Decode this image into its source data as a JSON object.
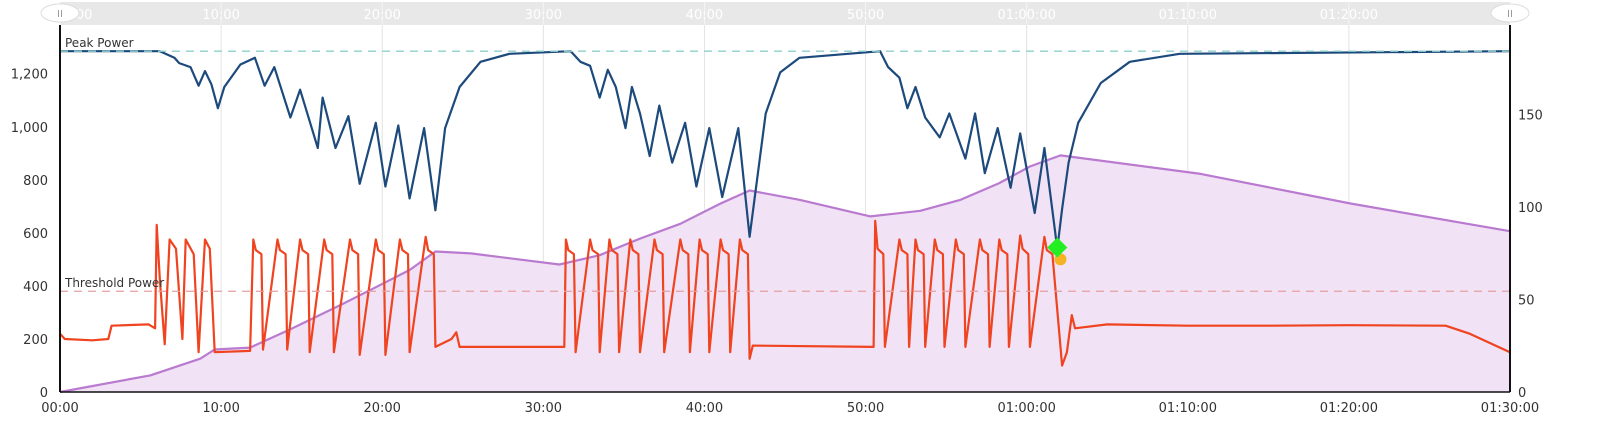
{
  "chart_data": {
    "type": "line",
    "x_unit": "minutes",
    "xlim": [
      0,
      90
    ],
    "ylim_left": [
      0,
      1380
    ],
    "ylim_right": [
      0,
      198
    ],
    "grid": "vertical",
    "x_ticks": [
      {
        "v": 0,
        "label": "00:00"
      },
      {
        "v": 10,
        "label": "10:00"
      },
      {
        "v": 20,
        "label": "20:00"
      },
      {
        "v": 30,
        "label": "30:00"
      },
      {
        "v": 40,
        "label": "40:00"
      },
      {
        "v": 50,
        "label": "50:00"
      },
      {
        "v": 60,
        "label": "01:00:00"
      },
      {
        "v": 70,
        "label": "01:10:00"
      },
      {
        "v": 80,
        "label": "01:20:00"
      },
      {
        "v": 90,
        "label": "01:30:00"
      }
    ],
    "navigator_ticks": [
      {
        "v": 0,
        "label": ":00"
      },
      {
        "v": 10,
        "label": "10:00"
      },
      {
        "v": 20,
        "label": "20:00"
      },
      {
        "v": 30,
        "label": "30:00"
      },
      {
        "v": 40,
        "label": "40:00"
      },
      {
        "v": 50,
        "label": "50:00"
      },
      {
        "v": 60,
        "label": "01:00:00"
      },
      {
        "v": 70,
        "label": "01:10:00"
      },
      {
        "v": 80,
        "label": "01:20:00"
      }
    ],
    "y_left_ticks": [
      {
        "v": 0,
        "label": "0"
      },
      {
        "v": 200,
        "label": "200"
      },
      {
        "v": 400,
        "label": "400"
      },
      {
        "v": 600,
        "label": "600"
      },
      {
        "v": 800,
        "label": "800"
      },
      {
        "v": 1000,
        "label": "1,000"
      },
      {
        "v": 1200,
        "label": "1,200"
      }
    ],
    "y_right_ticks": [
      {
        "v": 0,
        "label": "0"
      },
      {
        "v": 50,
        "label": "50"
      },
      {
        "v": 100,
        "label": "100"
      },
      {
        "v": 150,
        "label": "150"
      }
    ],
    "reference_lines": [
      {
        "label": "Peak Power",
        "value": 1285,
        "color": "#8ecfcb"
      },
      {
        "label": "Threshold Power",
        "value": 380,
        "color": "#e5a0a0"
      }
    ],
    "series": [
      {
        "axis": "right",
        "style": "area",
        "color": "#b97ad0",
        "fill": "#f1e3f5",
        "points": [
          [
            0,
            0
          ],
          [
            5.6,
            9
          ],
          [
            8.7,
            18
          ],
          [
            9.6,
            23
          ],
          [
            11.8,
            24
          ],
          [
            14.3,
            34
          ],
          [
            17.4,
            47
          ],
          [
            19.9,
            58
          ],
          [
            21.7,
            66
          ],
          [
            23.3,
            76
          ],
          [
            25.5,
            75
          ],
          [
            31.0,
            69
          ],
          [
            33.5,
            74
          ],
          [
            36.0,
            83
          ],
          [
            38.5,
            91
          ],
          [
            41.0,
            102
          ],
          [
            42.8,
            109
          ],
          [
            45.9,
            104
          ],
          [
            50.3,
            95
          ],
          [
            53.4,
            98
          ],
          [
            55.9,
            104
          ],
          [
            58.3,
            113
          ],
          [
            60.2,
            122
          ],
          [
            62.1,
            128
          ],
          [
            70.8,
            118
          ],
          [
            80.1,
            102
          ],
          [
            90,
            87
          ]
        ]
      },
      {
        "axis": "left",
        "style": "line",
        "color": "#f0431f",
        "points": [
          [
            0,
            220
          ],
          [
            0.3,
            200
          ],
          [
            2,
            195
          ],
          [
            3,
            200
          ],
          [
            3.2,
            250
          ],
          [
            5.5,
            255
          ],
          [
            5.9,
            240
          ],
          [
            6.0,
            630
          ],
          [
            6.2,
            420
          ],
          [
            6.5,
            180
          ],
          [
            6.8,
            575
          ],
          [
            7.2,
            540
          ],
          [
            7.6,
            200
          ],
          [
            7.8,
            575
          ],
          [
            8.3,
            520
          ],
          [
            8.6,
            150
          ],
          [
            9.0,
            575
          ],
          [
            9.3,
            540
          ],
          [
            9.6,
            150
          ],
          [
            11.8,
            155
          ],
          [
            12.0,
            575
          ],
          [
            12.15,
            535
          ],
          [
            12.5,
            520
          ],
          [
            12.6,
            160
          ],
          [
            13.5,
            575
          ],
          [
            13.65,
            535
          ],
          [
            14.0,
            520
          ],
          [
            14.1,
            160
          ],
          [
            14.9,
            575
          ],
          [
            15.05,
            535
          ],
          [
            15.4,
            520
          ],
          [
            15.5,
            150
          ],
          [
            16.4,
            575
          ],
          [
            16.55,
            535
          ],
          [
            16.9,
            520
          ],
          [
            17.0,
            150
          ],
          [
            18.0,
            575
          ],
          [
            18.15,
            535
          ],
          [
            18.5,
            520
          ],
          [
            18.6,
            140
          ],
          [
            19.6,
            575
          ],
          [
            19.75,
            535
          ],
          [
            20.1,
            520
          ],
          [
            20.2,
            140
          ],
          [
            21.1,
            575
          ],
          [
            21.25,
            535
          ],
          [
            21.6,
            520
          ],
          [
            21.7,
            150
          ],
          [
            22.7,
            585
          ],
          [
            22.85,
            535
          ],
          [
            23.2,
            520
          ],
          [
            23.3,
            170
          ],
          [
            24.3,
            200
          ],
          [
            24.6,
            225
          ],
          [
            24.8,
            170
          ],
          [
            31.3,
            170
          ],
          [
            31.4,
            575
          ],
          [
            31.55,
            535
          ],
          [
            31.9,
            520
          ],
          [
            32.0,
            150
          ],
          [
            32.9,
            575
          ],
          [
            33.05,
            535
          ],
          [
            33.4,
            520
          ],
          [
            33.5,
            150
          ],
          [
            34.1,
            575
          ],
          [
            34.25,
            535
          ],
          [
            34.6,
            520
          ],
          [
            34.7,
            150
          ],
          [
            35.4,
            575
          ],
          [
            35.55,
            535
          ],
          [
            35.9,
            520
          ],
          [
            36.0,
            150
          ],
          [
            36.9,
            575
          ],
          [
            37.05,
            535
          ],
          [
            37.4,
            520
          ],
          [
            37.5,
            150
          ],
          [
            38.5,
            575
          ],
          [
            38.65,
            535
          ],
          [
            39.0,
            520
          ],
          [
            39.1,
            150
          ],
          [
            39.7,
            575
          ],
          [
            39.85,
            535
          ],
          [
            40.2,
            520
          ],
          [
            40.3,
            150
          ],
          [
            41.0,
            575
          ],
          [
            41.15,
            535
          ],
          [
            41.5,
            520
          ],
          [
            41.6,
            150
          ],
          [
            42.2,
            575
          ],
          [
            42.35,
            535
          ],
          [
            42.7,
            520
          ],
          [
            42.8,
            125
          ],
          [
            43.0,
            175
          ],
          [
            50.5,
            170
          ],
          [
            50.6,
            645
          ],
          [
            50.75,
            540
          ],
          [
            51.1,
            520
          ],
          [
            51.2,
            170
          ],
          [
            52.1,
            575
          ],
          [
            52.25,
            535
          ],
          [
            52.6,
            520
          ],
          [
            52.7,
            170
          ],
          [
            53.1,
            575
          ],
          [
            53.25,
            535
          ],
          [
            53.6,
            520
          ],
          [
            53.7,
            170
          ],
          [
            54.3,
            575
          ],
          [
            54.45,
            535
          ],
          [
            54.8,
            520
          ],
          [
            54.9,
            170
          ],
          [
            55.6,
            575
          ],
          [
            55.75,
            535
          ],
          [
            56.1,
            520
          ],
          [
            56.2,
            170
          ],
          [
            57.1,
            575
          ],
          [
            57.25,
            535
          ],
          [
            57.6,
            520
          ],
          [
            57.7,
            170
          ],
          [
            58.3,
            575
          ],
          [
            58.45,
            535
          ],
          [
            58.8,
            520
          ],
          [
            58.9,
            170
          ],
          [
            59.6,
            590
          ],
          [
            59.75,
            540
          ],
          [
            60.1,
            520
          ],
          [
            60.2,
            170
          ],
          [
            61.1,
            585
          ],
          [
            61.25,
            535
          ],
          [
            61.6,
            520
          ],
          [
            62.2,
            100
          ],
          [
            62.5,
            150
          ],
          [
            62.8,
            290
          ],
          [
            63.0,
            240
          ],
          [
            65,
            255
          ],
          [
            70,
            250
          ],
          [
            75,
            250
          ],
          [
            80,
            252
          ],
          [
            86,
            250
          ],
          [
            87.5,
            220
          ],
          [
            90,
            150
          ]
        ]
      },
      {
        "axis": "left",
        "style": "line",
        "color": "#1d4a7c",
        "points": [
          [
            0,
            1285
          ],
          [
            6.2,
            1285
          ],
          [
            7.1,
            1260
          ],
          [
            7.4,
            1240
          ],
          [
            8.1,
            1225
          ],
          [
            8.6,
            1155
          ],
          [
            9.0,
            1210
          ],
          [
            9.4,
            1160
          ],
          [
            9.8,
            1070
          ],
          [
            10.2,
            1150
          ],
          [
            11.2,
            1235
          ],
          [
            12.1,
            1260
          ],
          [
            12.7,
            1155
          ],
          [
            13.3,
            1225
          ],
          [
            14.3,
            1035
          ],
          [
            14.9,
            1140
          ],
          [
            16.0,
            920
          ],
          [
            16.3,
            1110
          ],
          [
            17.1,
            920
          ],
          [
            17.9,
            1040
          ],
          [
            18.6,
            785
          ],
          [
            19.6,
            1015
          ],
          [
            20.2,
            775
          ],
          [
            21.0,
            1005
          ],
          [
            21.7,
            730
          ],
          [
            22.6,
            995
          ],
          [
            23.3,
            685
          ],
          [
            23.9,
            995
          ],
          [
            24.8,
            1150
          ],
          [
            26.1,
            1245
          ],
          [
            27.9,
            1275
          ],
          [
            31.7,
            1285
          ],
          [
            32.3,
            1245
          ],
          [
            32.9,
            1230
          ],
          [
            33.5,
            1110
          ],
          [
            34.0,
            1215
          ],
          [
            34.5,
            1150
          ],
          [
            35.1,
            995
          ],
          [
            35.5,
            1150
          ],
          [
            36.0,
            1050
          ],
          [
            36.6,
            890
          ],
          [
            37.2,
            1080
          ],
          [
            38.0,
            865
          ],
          [
            38.8,
            1015
          ],
          [
            39.5,
            775
          ],
          [
            40.3,
            995
          ],
          [
            41.1,
            735
          ],
          [
            42.1,
            995
          ],
          [
            42.8,
            585
          ],
          [
            43.8,
            1050
          ],
          [
            44.7,
            1205
          ],
          [
            45.9,
            1260
          ],
          [
            50.9,
            1285
          ],
          [
            51.4,
            1225
          ],
          [
            52.1,
            1185
          ],
          [
            52.6,
            1070
          ],
          [
            53.1,
            1150
          ],
          [
            53.7,
            1035
          ],
          [
            54.6,
            960
          ],
          [
            55.2,
            1050
          ],
          [
            56.2,
            880
          ],
          [
            56.8,
            1050
          ],
          [
            57.4,
            825
          ],
          [
            58.2,
            995
          ],
          [
            59.0,
            770
          ],
          [
            59.6,
            975
          ],
          [
            60.5,
            675
          ],
          [
            61.1,
            920
          ],
          [
            61.9,
            540
          ],
          [
            62.2,
            690
          ],
          [
            62.6,
            865
          ],
          [
            63.2,
            1015
          ],
          [
            64.6,
            1165
          ],
          [
            66.4,
            1245
          ],
          [
            69.5,
            1275
          ],
          [
            90,
            1285
          ]
        ]
      }
    ],
    "markers": [
      {
        "shape": "diamond",
        "color": "#22ee22",
        "x": 61.9,
        "y": 545,
        "axis": "left"
      },
      {
        "shape": "circle",
        "color": "#f5b324",
        "x": 62.1,
        "y": 500,
        "axis": "left"
      }
    ]
  }
}
